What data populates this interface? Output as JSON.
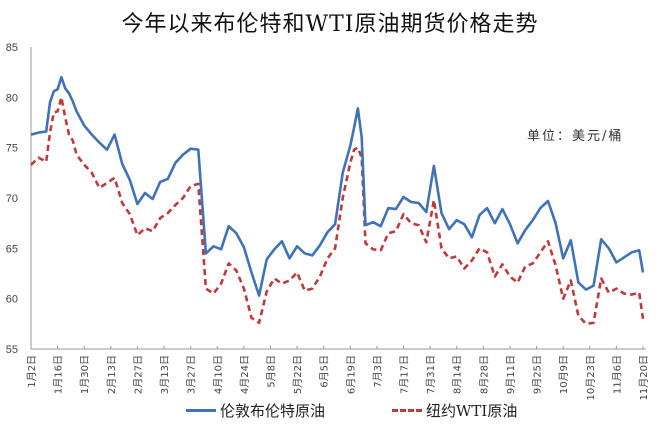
{
  "title": "今年以来布伦特和WTI原油期货价格走势",
  "unit_label": "单位：美元/桶",
  "colors": {
    "brent": "#3f72b8",
    "wti": "#c0393b",
    "axis": "#9a9a9a"
  },
  "legend": [
    {
      "label": "伦敦布伦特原油",
      "style": "solid",
      "color": "#3f72b8"
    },
    {
      "label": "纽约WTI原油",
      "style": "dashed",
      "color": "#c0393b"
    }
  ],
  "chart_data": {
    "type": "line",
    "title": "今年以来布伦特和WTI原油期货价格走势",
    "xlabel": "",
    "ylabel": "单位：美元/桶",
    "ylim": [
      55,
      85
    ],
    "yticks": [
      55,
      60,
      65,
      70,
      75,
      80,
      85
    ],
    "grid": false,
    "legend_position": "bottom",
    "x_tick_labels": [
      "1月2日",
      "1月16日",
      "1月30日",
      "2月13日",
      "2月27日",
      "3月13日",
      "3月27日",
      "4月10日",
      "4月24日",
      "5月8日",
      "5月22日",
      "6月5日",
      "6月19日",
      "7月3日",
      "7月17日",
      "7月31日",
      "8月14日",
      "8月28日",
      "9月11日",
      "9月25日",
      "10月9日",
      "10月23日",
      "11月6日",
      "11月20日"
    ],
    "x_days": [
      0,
      4,
      8,
      10,
      12,
      14,
      16,
      18,
      20,
      22,
      24,
      28,
      32,
      36,
      40,
      44,
      48,
      52,
      56,
      60,
      64,
      68,
      72,
      76,
      80,
      84,
      88,
      92,
      96,
      100,
      104,
      108,
      112,
      116,
      120,
      124,
      128,
      132,
      136,
      140,
      144,
      148,
      152,
      156,
      160,
      164,
      168,
      170,
      172,
      174,
      176,
      180,
      184,
      188,
      192,
      196,
      200,
      204,
      208,
      212,
      216,
      220,
      224,
      228,
      232,
      236,
      240,
      244,
      248,
      252,
      256,
      260,
      264,
      268,
      272,
      276,
      280,
      284,
      288,
      292,
      296,
      300,
      304,
      308,
      312,
      316,
      320,
      322
    ],
    "series": [
      {
        "name": "伦敦布伦特原油",
        "style": "solid",
        "values": [
          76.3,
          76.5,
          76.6,
          79.5,
          80.6,
          80.8,
          82.0,
          80.9,
          80.4,
          79.6,
          78.6,
          77.2,
          76.3,
          75.5,
          74.8,
          76.3,
          73.4,
          71.8,
          69.4,
          70.5,
          69.9,
          71.6,
          71.9,
          73.5,
          74.3,
          74.9,
          74.8,
          64.5,
          65.2,
          64.9,
          67.2,
          66.5,
          65.1,
          62.6,
          60.3,
          63.9,
          64.9,
          65.7,
          64.0,
          65.2,
          64.5,
          64.3,
          65.3,
          66.6,
          67.4,
          72.5,
          75.2,
          77.0,
          78.9,
          76.0,
          67.3,
          67.6,
          67.2,
          69.0,
          68.9,
          70.1,
          69.6,
          69.5,
          68.6,
          73.2,
          68.5,
          66.9,
          67.8,
          67.4,
          66.1,
          68.3,
          69.0,
          67.5,
          68.9,
          67.4,
          65.5,
          66.8,
          67.8,
          69.0,
          69.7,
          67.5,
          64.0,
          65.8,
          61.6,
          60.9,
          61.3,
          65.9,
          65.0,
          63.6,
          64.1,
          64.6,
          64.8,
          62.6
        ]
      },
      {
        "name": "纽约WTI原油",
        "style": "dashed",
        "values": [
          73.3,
          74.0,
          73.6,
          76.5,
          78.5,
          78.6,
          80.0,
          78.0,
          76.3,
          75.7,
          74.3,
          73.3,
          72.5,
          71.0,
          71.5,
          72.0,
          69.5,
          68.4,
          66.3,
          67.0,
          66.7,
          68.0,
          68.5,
          69.3,
          70.0,
          71.2,
          71.4,
          61.0,
          60.5,
          61.5,
          63.5,
          62.8,
          61.0,
          58.1,
          57.6,
          60.7,
          62.0,
          61.5,
          61.8,
          62.6,
          60.8,
          61.0,
          62.2,
          64.0,
          65.0,
          70.0,
          73.5,
          74.8,
          75.0,
          74.0,
          65.5,
          64.9,
          64.8,
          66.5,
          66.7,
          68.4,
          67.5,
          67.3,
          65.6,
          69.8,
          65.0,
          64.0,
          64.2,
          63.0,
          63.8,
          65.0,
          64.6,
          62.2,
          63.4,
          62.2,
          61.6,
          63.2,
          63.5,
          64.6,
          65.7,
          63.3,
          60.0,
          61.8,
          58.3,
          57.5,
          57.6,
          62.0,
          60.6,
          61.0,
          60.5,
          60.4,
          60.6,
          58.0
        ]
      }
    ]
  }
}
